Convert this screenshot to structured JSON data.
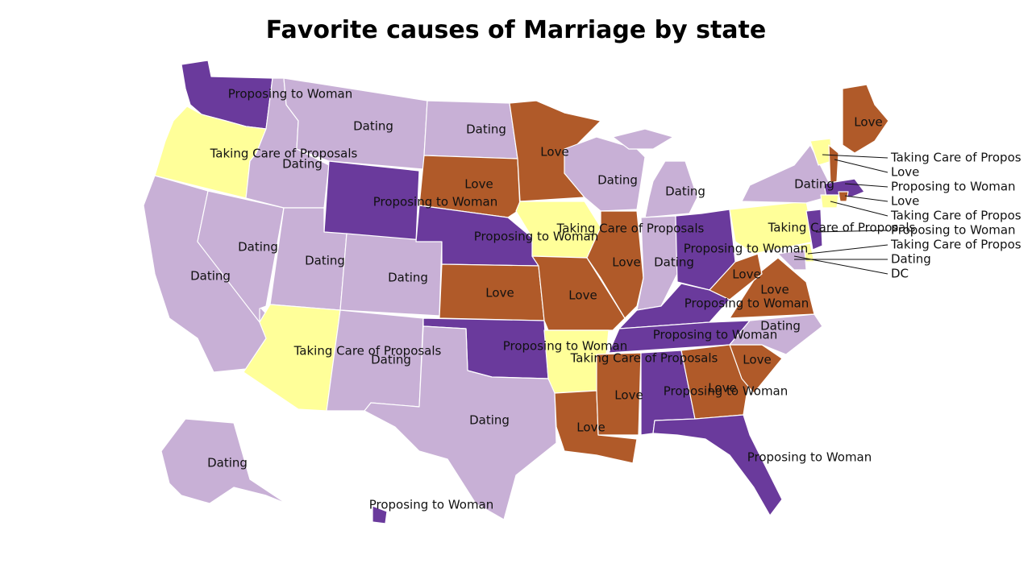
{
  "title": "Favorite causes of Marriage by state",
  "colors": {
    "Dating": "#c8b0d6",
    "Love": "#b05a29",
    "Proposing to Woman": "#6a3a9c",
    "Taking Care of Proposals": "#ffff99"
  },
  "states": [
    {
      "name": "Washington",
      "category": "Proposing to Woman"
    },
    {
      "name": "Oregon",
      "category": "Taking Care of Proposals"
    },
    {
      "name": "California",
      "category": "Dating"
    },
    {
      "name": "Nevada",
      "category": "Dating"
    },
    {
      "name": "Idaho",
      "category": "Dating"
    },
    {
      "name": "Montana",
      "category": "Dating"
    },
    {
      "name": "Wyoming",
      "category": "Proposing to Woman"
    },
    {
      "name": "Utah",
      "category": "Dating"
    },
    {
      "name": "Colorado",
      "category": "Dating"
    },
    {
      "name": "Arizona",
      "category": "Taking Care of Proposals"
    },
    {
      "name": "New Mexico",
      "category": "Dating"
    },
    {
      "name": "North Dakota",
      "category": "Dating"
    },
    {
      "name": "South Dakota",
      "category": "Love"
    },
    {
      "name": "Nebraska",
      "category": "Proposing to Woman"
    },
    {
      "name": "Kansas",
      "category": "Love"
    },
    {
      "name": "Oklahoma",
      "category": "Proposing to Woman"
    },
    {
      "name": "Texas",
      "category": "Dating"
    },
    {
      "name": "Minnesota",
      "category": "Love"
    },
    {
      "name": "Iowa",
      "category": "Taking Care of Proposals"
    },
    {
      "name": "Missouri",
      "category": "Love"
    },
    {
      "name": "Arkansas",
      "category": "Taking Care of Proposals"
    },
    {
      "name": "Louisiana",
      "category": "Love"
    },
    {
      "name": "Wisconsin",
      "category": "Dating"
    },
    {
      "name": "Illinois",
      "category": "Love"
    },
    {
      "name": "Michigan",
      "category": "Dating"
    },
    {
      "name": "Indiana",
      "category": "Dating"
    },
    {
      "name": "Ohio",
      "category": "Proposing to Woman"
    },
    {
      "name": "Kentucky",
      "category": "Proposing to Woman"
    },
    {
      "name": "Tennessee",
      "category": "Proposing to Woman"
    },
    {
      "name": "Mississippi",
      "category": "Love"
    },
    {
      "name": "Alabama",
      "category": "Proposing to Woman"
    },
    {
      "name": "Georgia",
      "category": "Love"
    },
    {
      "name": "Florida",
      "category": "Proposing to Woman"
    },
    {
      "name": "South Carolina",
      "category": "Love"
    },
    {
      "name": "North Carolina",
      "category": "Dating"
    },
    {
      "name": "Virginia",
      "category": "Love"
    },
    {
      "name": "West Virginia",
      "category": "Love"
    },
    {
      "name": "Pennsylvania",
      "category": "Taking Care of Proposals"
    },
    {
      "name": "New York",
      "category": "Dating"
    },
    {
      "name": "Maine",
      "category": "Love"
    },
    {
      "name": "Alaska",
      "category": "Dating"
    },
    {
      "name": "Hawaii",
      "category": "Proposing to Woman"
    }
  ],
  "callouts": [
    {
      "text": "Taking Care of Propos",
      "category": "Taking Care of Proposals"
    },
    {
      "text": "Love",
      "category": "Love"
    },
    {
      "text": "Proposing to Woman",
      "category": "Proposing to Woman"
    },
    {
      "text": "Love",
      "category": "Love"
    },
    {
      "text": "Taking Care of Propos",
      "category": "Taking Care of Proposals"
    },
    {
      "text": "Proposing to Woman",
      "category": "Proposing to Woman"
    },
    {
      "text": "Taking Care of Propos",
      "category": "Taking Care of Proposals"
    },
    {
      "text": "Dating",
      "category": "Dating"
    },
    {
      "text": "DC",
      "category": "Dating"
    }
  ]
}
